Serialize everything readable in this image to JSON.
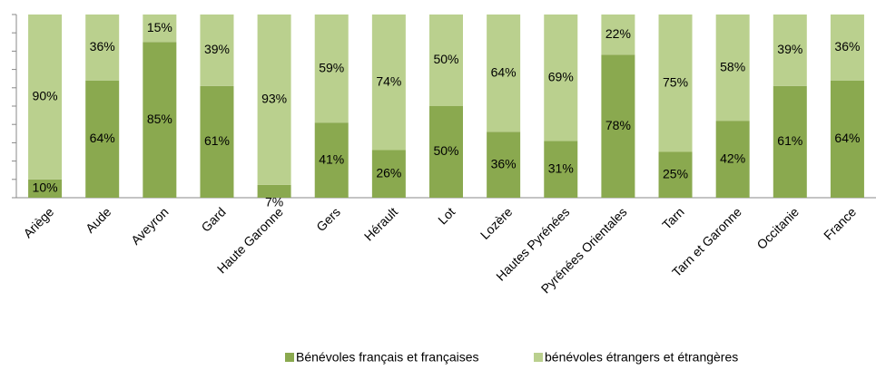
{
  "chart_data": {
    "type": "stacked_bar",
    "categories": [
      "Ariège",
      "Aude",
      "Aveyron",
      "Gard",
      "Haute Garonne",
      "Gers",
      "Hérault",
      "Lot",
      "Lozère",
      "Hautes Pyrénées",
      "Pyrénées Orientales",
      "Tarn",
      "Tarn et Garonne",
      "Occitanie",
      "France"
    ],
    "series": [
      {
        "name": "Bénévoles français et françaises",
        "color": "#8aa94f",
        "values": [
          10,
          64,
          85,
          61,
          7,
          41,
          26,
          50,
          36,
          31,
          78,
          25,
          42,
          61,
          64
        ],
        "value_labels": [
          "10%",
          "64%",
          "85%",
          "61%",
          "7%",
          "41%",
          "26%",
          "50%",
          "36%",
          "31%",
          "78%",
          "25%",
          "42%",
          "61%",
          "64%"
        ]
      },
      {
        "name": "bénévoles étrangers et étrangères",
        "color": "#bad08e",
        "values": [
          90,
          36,
          15,
          39,
          93,
          59,
          74,
          50,
          64,
          69,
          22,
          75,
          58,
          39,
          36
        ],
        "value_labels": [
          "90%",
          "36%",
          "15%",
          "39%",
          "93%",
          "59%",
          "74%",
          "50%",
          "64%",
          "69%",
          "22%",
          "75%",
          "58%",
          "39%",
          "36%"
        ]
      }
    ],
    "ylim": [
      0,
      100
    ],
    "yticks": [
      0,
      10,
      20,
      30,
      40,
      50,
      60,
      70,
      80,
      90,
      100
    ],
    "legend": "bottom"
  }
}
